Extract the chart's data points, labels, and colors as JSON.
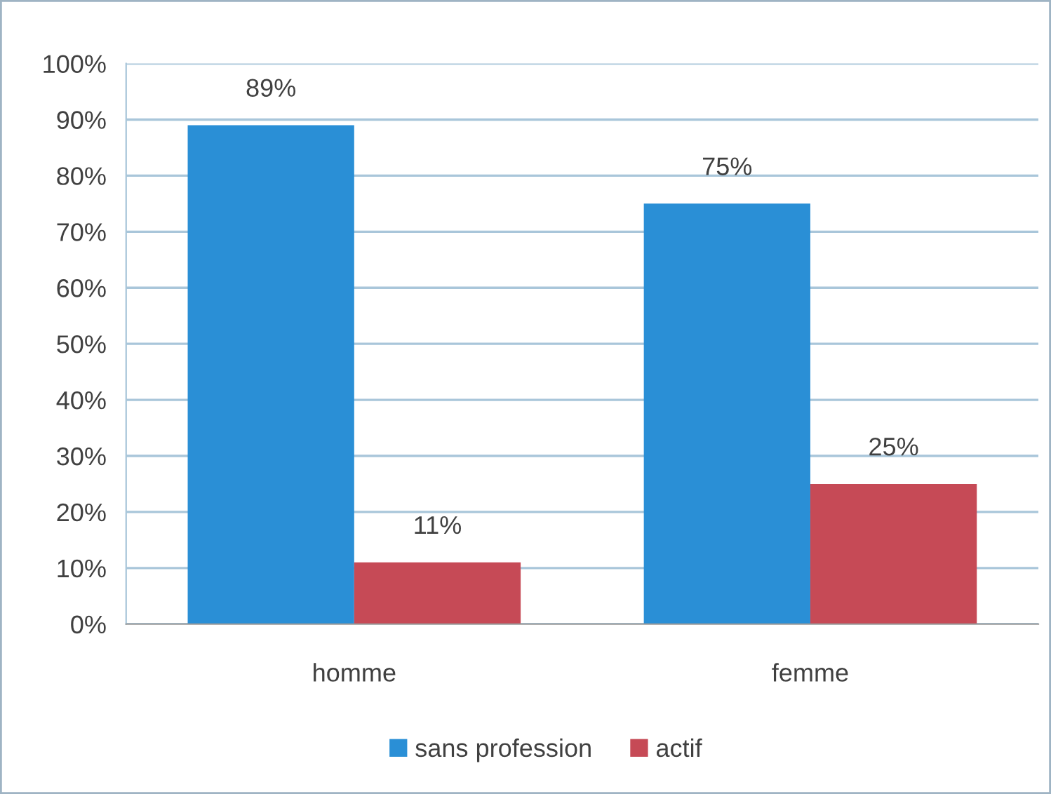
{
  "chart_data": {
    "type": "bar",
    "categories": [
      "homme",
      "femme"
    ],
    "series": [
      {
        "name": "sans profession",
        "color": "#2a8fd6",
        "values": [
          89,
          75
        ],
        "value_labels": [
          "89%",
          "75%"
        ]
      },
      {
        "name": "actif",
        "color": "#c64a56",
        "values": [
          11,
          25
        ],
        "value_labels": [
          "11%",
          "25%"
        ]
      }
    ],
    "ylim": [
      0,
      100
    ],
    "yticks": [
      {
        "value": 0,
        "label": "0%"
      },
      {
        "value": 10,
        "label": "10%"
      },
      {
        "value": 20,
        "label": "20%"
      },
      {
        "value": 30,
        "label": "30%"
      },
      {
        "value": 40,
        "label": "40%"
      },
      {
        "value": 50,
        "label": "50%"
      },
      {
        "value": 60,
        "label": "60%"
      },
      {
        "value": 70,
        "label": "70%"
      },
      {
        "value": 80,
        "label": "80%"
      },
      {
        "value": 90,
        "label": "90%"
      },
      {
        "value": 100,
        "label": "100%"
      }
    ],
    "grid": "y",
    "legend": "bottom"
  }
}
